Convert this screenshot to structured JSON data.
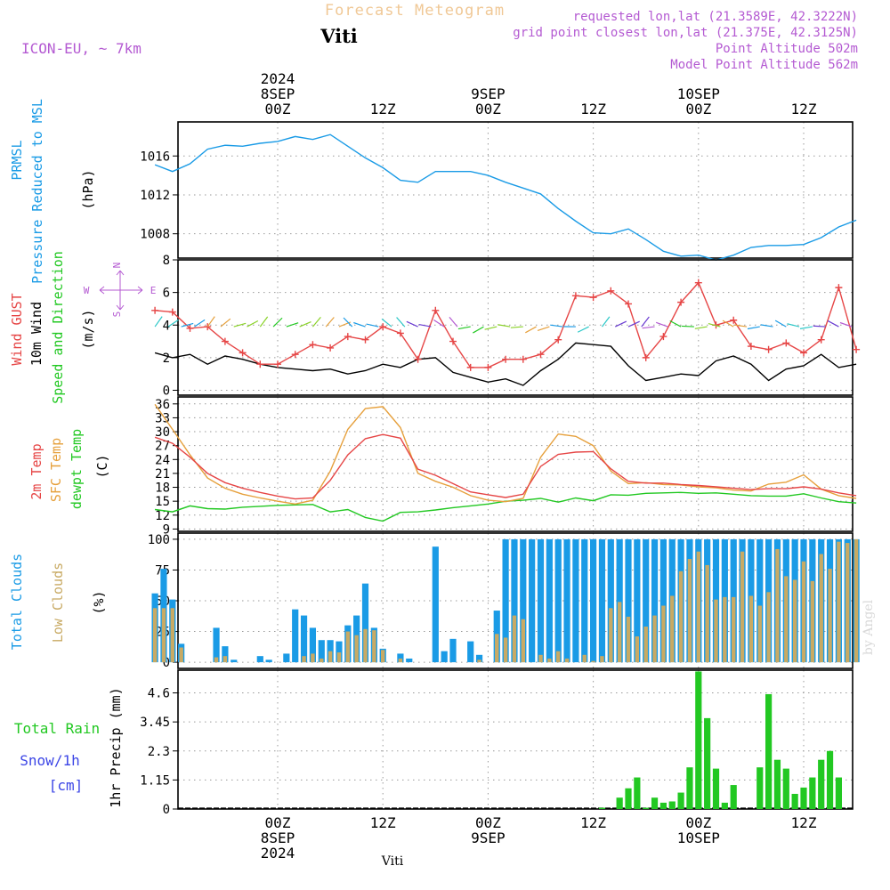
{
  "header": {
    "title": "Forecast Meteogram",
    "station": "Viti",
    "model": "ICON-EU, ~ 7km",
    "requested": "requested lon,lat (21.3589E, 42.3222N)",
    "grid_point": "grid point closest lon,lat (21.375E, 42.3125N)",
    "point_altitude": "Point Altitude 502m",
    "model_altitude": "Model Point Altitude 562m",
    "footer_station": "Viti",
    "watermark": "by Angel"
  },
  "time_axis": {
    "top_labels": [
      {
        "hour": 0,
        "lines": [
          "2024",
          "8SEP",
          "00Z"
        ]
      },
      {
        "hour": 12,
        "lines": [
          "12Z"
        ]
      },
      {
        "hour": 24,
        "lines": [
          "9SEP",
          "00Z"
        ]
      },
      {
        "hour": 36,
        "lines": [
          "12Z"
        ]
      },
      {
        "hour": 48,
        "lines": [
          "10SEP",
          "00Z"
        ]
      },
      {
        "hour": 60,
        "lines": [
          "12Z"
        ]
      }
    ],
    "bottom_labels": [
      {
        "hour": 0,
        "lines": [
          "00Z",
          "8SEP",
          "2024"
        ]
      },
      {
        "hour": 12,
        "lines": [
          "12Z"
        ]
      },
      {
        "hour": 24,
        "lines": [
          "00Z",
          "9SEP"
        ]
      },
      {
        "hour": 36,
        "lines": [
          "12Z"
        ]
      },
      {
        "hour": 48,
        "lines": [
          "00Z",
          "10SEP"
        ]
      },
      {
        "hour": 60,
        "lines": [
          "12Z"
        ]
      }
    ]
  },
  "colors": {
    "pressure": "#1a9be6",
    "gust": "#e64646",
    "wind": "#000000",
    "t2m": "#e64646",
    "sfc": "#e6a03c",
    "dew": "#22c822",
    "total_clouds": "#1a9be6",
    "low_clouds": "#c8aa64",
    "rain": "#22c822",
    "snow": "#3c46e6",
    "purple": "#b45ad2",
    "title": "#f0c896"
  },
  "panels": {
    "pressure": {
      "label_name": "PRMSL",
      "label_desc": "Pressure Reduced to MSL",
      "unit": "(hPa)"
    },
    "wind": {
      "label_gust": "Wind GUST",
      "label_wind": "10m Wind",
      "label_dir": "Speed and Direction",
      "unit": "(m/s)",
      "compass_n": "N",
      "compass_s": "S",
      "compass_w": "W",
      "compass_e": "E"
    },
    "temp": {
      "label_t2m": "2m Temp",
      "label_sfc": "SFC Temp",
      "label_dew": "dewpt Temp",
      "unit": "(C)"
    },
    "clouds": {
      "label_total": "Total Clouds",
      "label_low": "Low Clouds",
      "unit": "(%)"
    },
    "precip": {
      "label_rain": "Total  Rain",
      "label_snow": "Snow/1h",
      "label_cm": "[cm]",
      "unit": "1hr Precip (mm)"
    }
  },
  "chart_data": [
    {
      "type": "line",
      "name": "pressure",
      "x_unit": "hours from 2024-09-08 00Z",
      "ylim": [
        1005.5,
        1019.5
      ],
      "yticks": [
        1008,
        1012,
        1016
      ],
      "x": [
        -14,
        -12,
        -10,
        -8,
        -6,
        -4,
        -2,
        0,
        2,
        4,
        6,
        8,
        10,
        12,
        14,
        16,
        18,
        20,
        22,
        24,
        26,
        28,
        30,
        32,
        34,
        36,
        38,
        40,
        42,
        44,
        46,
        48,
        50,
        52,
        54,
        56,
        58,
        60,
        62,
        64,
        66
      ],
      "series": [
        {
          "name": "PRMSL",
          "values": [
            1015.1,
            1014.4,
            1015.2,
            1016.7,
            1017.1,
            1017.0,
            1017.3,
            1017.5,
            1018.0,
            1017.7,
            1018.2,
            1017.0,
            1015.8,
            1014.8,
            1013.5,
            1013.3,
            1014.4,
            1014.4,
            1014.4,
            1014.0,
            1013.3,
            1012.7,
            1012.1,
            1010.6,
            1009.3,
            1008.1,
            1008.0,
            1008.5,
            1007.4,
            1006.2,
            1005.7,
            1005.8,
            1005.3,
            1005.8,
            1006.6,
            1006.8,
            1006.8,
            1006.9,
            1007.6,
            1008.7,
            1009.4
          ]
        }
      ]
    },
    {
      "type": "line",
      "name": "wind",
      "x_unit": "hours from 2024-09-08 00Z",
      "ylim": [
        -0.3,
        8.0
      ],
      "yticks": [
        0,
        2,
        4,
        6,
        8
      ],
      "x": [
        -14,
        -12,
        -10,
        -8,
        -6,
        -4,
        -2,
        0,
        2,
        4,
        6,
        8,
        10,
        12,
        14,
        16,
        18,
        20,
        22,
        24,
        26,
        28,
        30,
        32,
        34,
        36,
        38,
        40,
        42,
        44,
        46,
        48,
        50,
        52,
        54,
        56,
        58,
        60,
        62,
        64,
        66
      ],
      "series": [
        {
          "name": "Wind GUST",
          "values": [
            4.9,
            4.8,
            3.8,
            3.9,
            3.0,
            2.3,
            1.6,
            1.6,
            2.2,
            2.8,
            2.6,
            3.3,
            3.1,
            3.9,
            3.5,
            1.9,
            4.9,
            3.0,
            1.4,
            1.4,
            1.9,
            1.9,
            2.2,
            3.1,
            5.8,
            5.7,
            6.1,
            5.3,
            2.0,
            3.3,
            5.4,
            6.6,
            4.0,
            4.3,
            2.7,
            2.5,
            2.9,
            2.3,
            3.1,
            6.3,
            2.5
          ]
        },
        {
          "name": "10m Wind",
          "values": [
            2.3,
            2.0,
            2.2,
            1.6,
            2.1,
            1.9,
            1.6,
            1.4,
            1.3,
            1.2,
            1.3,
            1.0,
            1.2,
            1.6,
            1.4,
            1.9,
            2.0,
            1.1,
            0.8,
            0.5,
            0.7,
            0.3,
            1.2,
            1.9,
            2.9,
            2.8,
            2.7,
            1.5,
            0.6,
            0.8,
            1.0,
            0.9,
            1.8,
            2.1,
            1.6,
            0.6,
            1.3,
            1.5,
            2.2,
            1.4,
            1.6
          ]
        }
      ]
    },
    {
      "type": "line",
      "name": "temperature",
      "x_unit": "hours from 2024-09-08 00Z",
      "ylim": [
        8.5,
        37.5
      ],
      "yticks": [
        9,
        12,
        15,
        18,
        21,
        24,
        27,
        30,
        33,
        36
      ],
      "x": [
        -14,
        -12,
        -10,
        -8,
        -6,
        -4,
        -2,
        0,
        2,
        4,
        6,
        8,
        10,
        12,
        14,
        16,
        18,
        20,
        22,
        24,
        26,
        28,
        30,
        32,
        34,
        36,
        38,
        40,
        42,
        44,
        46,
        48,
        50,
        52,
        54,
        56,
        58,
        60,
        62,
        64,
        66
      ],
      "series": [
        {
          "name": "2m Temp",
          "values": [
            28.8,
            27.5,
            24.5,
            21.0,
            19.0,
            17.8,
            16.9,
            16.1,
            15.5,
            15.7,
            19.5,
            25.0,
            28.5,
            29.4,
            28.6,
            21.9,
            20.6,
            18.8,
            17.0,
            16.4,
            15.8,
            16.5,
            22.5,
            25.1,
            25.6,
            25.7,
            22.0,
            19.3,
            18.9,
            18.9,
            18.6,
            18.4,
            18.1,
            17.8,
            17.5,
            17.7,
            17.7,
            18.1,
            17.6,
            16.8,
            16.2
          ]
        },
        {
          "name": "SFC Temp",
          "values": [
            35.9,
            30.5,
            25.0,
            20.0,
            17.8,
            16.5,
            15.7,
            15.0,
            14.4,
            15.2,
            21.5,
            30.5,
            35.0,
            35.4,
            30.9,
            21.0,
            19.3,
            18.0,
            16.2,
            15.2,
            14.9,
            15.6,
            24.5,
            29.5,
            29.0,
            27.0,
            21.5,
            18.8,
            19.0,
            18.6,
            18.5,
            18.1,
            17.9,
            17.4,
            17.2,
            18.7,
            19.1,
            20.7,
            17.6,
            16.2,
            15.6
          ]
        },
        {
          "name": "dewpt Temp",
          "values": [
            13.2,
            12.7,
            14.0,
            13.4,
            13.3,
            13.7,
            13.9,
            14.1,
            14.2,
            14.3,
            12.7,
            13.2,
            11.5,
            10.7,
            12.6,
            12.7,
            13.1,
            13.6,
            14.0,
            14.4,
            15.0,
            15.2,
            15.6,
            14.8,
            15.7,
            15.1,
            16.4,
            16.3,
            16.7,
            16.8,
            16.9,
            16.7,
            16.8,
            16.5,
            16.2,
            16.1,
            16.1,
            16.6,
            15.7,
            14.9,
            14.6
          ]
        }
      ]
    },
    {
      "type": "bar",
      "name": "clouds",
      "x_unit": "hours from 2024-09-08 00Z",
      "ylim": [
        -5,
        105
      ],
      "yticks": [
        0,
        25,
        50,
        75,
        100
      ],
      "x": [
        -14,
        -13,
        -12,
        -11,
        -10,
        -9,
        -8,
        -7,
        -6,
        -5,
        -4,
        -3,
        -2,
        -1,
        0,
        1,
        2,
        3,
        4,
        5,
        6,
        7,
        8,
        9,
        10,
        11,
        12,
        13,
        14,
        15,
        16,
        17,
        18,
        19,
        20,
        21,
        22,
        23,
        24,
        25,
        26,
        27,
        28,
        29,
        30,
        31,
        32,
        33,
        34,
        35,
        36,
        37,
        38,
        39,
        40,
        41,
        42,
        43,
        44,
        45,
        46,
        47,
        48,
        49,
        50,
        51,
        52,
        53,
        54,
        55,
        56,
        57,
        58,
        59,
        60,
        61,
        62,
        63,
        64,
        65,
        66
      ],
      "series": [
        {
          "name": "Total Clouds",
          "values": [
            56,
            76,
            51,
            15,
            0,
            0,
            0,
            28,
            13,
            2,
            0,
            0,
            5,
            2,
            0,
            7,
            43,
            38,
            28,
            18,
            18,
            17,
            30,
            38,
            64,
            28,
            11,
            0,
            7,
            3,
            0,
            0,
            94,
            9,
            19,
            0,
            17,
            6,
            0,
            42,
            100,
            100,
            100,
            100,
            100,
            100,
            100,
            100,
            100,
            100,
            100,
            100,
            100,
            100,
            100,
            100,
            100,
            100,
            100,
            100,
            100,
            100,
            100,
            100,
            100,
            100,
            100,
            100,
            100,
            100,
            100,
            100,
            100,
            100,
            100,
            100,
            100,
            100,
            100,
            100,
            100
          ]
        },
        {
          "name": "Low Clouds",
          "values": [
            44,
            44,
            44,
            12,
            0,
            0,
            0,
            4,
            5,
            0,
            0,
            0,
            0,
            0,
            0,
            0,
            0,
            5,
            7,
            3,
            9,
            8,
            25,
            22,
            27,
            26,
            10,
            0,
            3,
            0,
            0,
            0,
            0,
            0,
            0,
            0,
            0,
            2,
            0,
            23,
            20,
            38,
            35,
            0,
            6,
            3,
            9,
            3,
            0,
            6,
            1,
            5,
            44,
            49,
            37,
            21,
            29,
            38,
            46,
            54,
            74,
            84,
            90,
            79,
            51,
            53,
            53,
            90,
            54,
            46,
            57,
            92,
            70,
            67,
            82,
            66,
            88,
            76,
            98,
            97,
            100
          ]
        }
      ]
    },
    {
      "type": "bar",
      "name": "precip",
      "x_unit": "hours from 2024-09-08 00Z",
      "ylim": [
        0,
        5.5
      ],
      "yticks": [
        0,
        1.15,
        2.3,
        3.45,
        4.6
      ],
      "x": [
        37,
        38,
        39,
        40,
        41,
        42,
        43,
        44,
        45,
        46,
        47,
        48,
        49,
        50,
        51,
        52,
        53,
        54,
        55,
        56,
        57,
        58,
        59,
        60,
        61,
        62,
        63,
        64,
        65,
        66
      ],
      "series": [
        {
          "name": "Rain",
          "values": [
            0.05,
            0,
            0.45,
            0.82,
            1.25,
            0.05,
            0.45,
            0.25,
            0.3,
            0.65,
            1.65,
            5.45,
            3.6,
            1.6,
            0.25,
            0.95,
            0,
            0,
            1.65,
            4.55,
            1.95,
            1.6,
            0.6,
            0.85,
            1.25,
            1.95,
            2.3,
            1.25,
            0,
            0
          ]
        },
        {
          "name": "Snow",
          "values": [
            0,
            0,
            0,
            0,
            0,
            0,
            0,
            0,
            0,
            0,
            0,
            0,
            0,
            0,
            0,
            0,
            0,
            0,
            0,
            0,
            0,
            0,
            0,
            0,
            0,
            0,
            0,
            0,
            0,
            0
          ]
        }
      ]
    }
  ]
}
